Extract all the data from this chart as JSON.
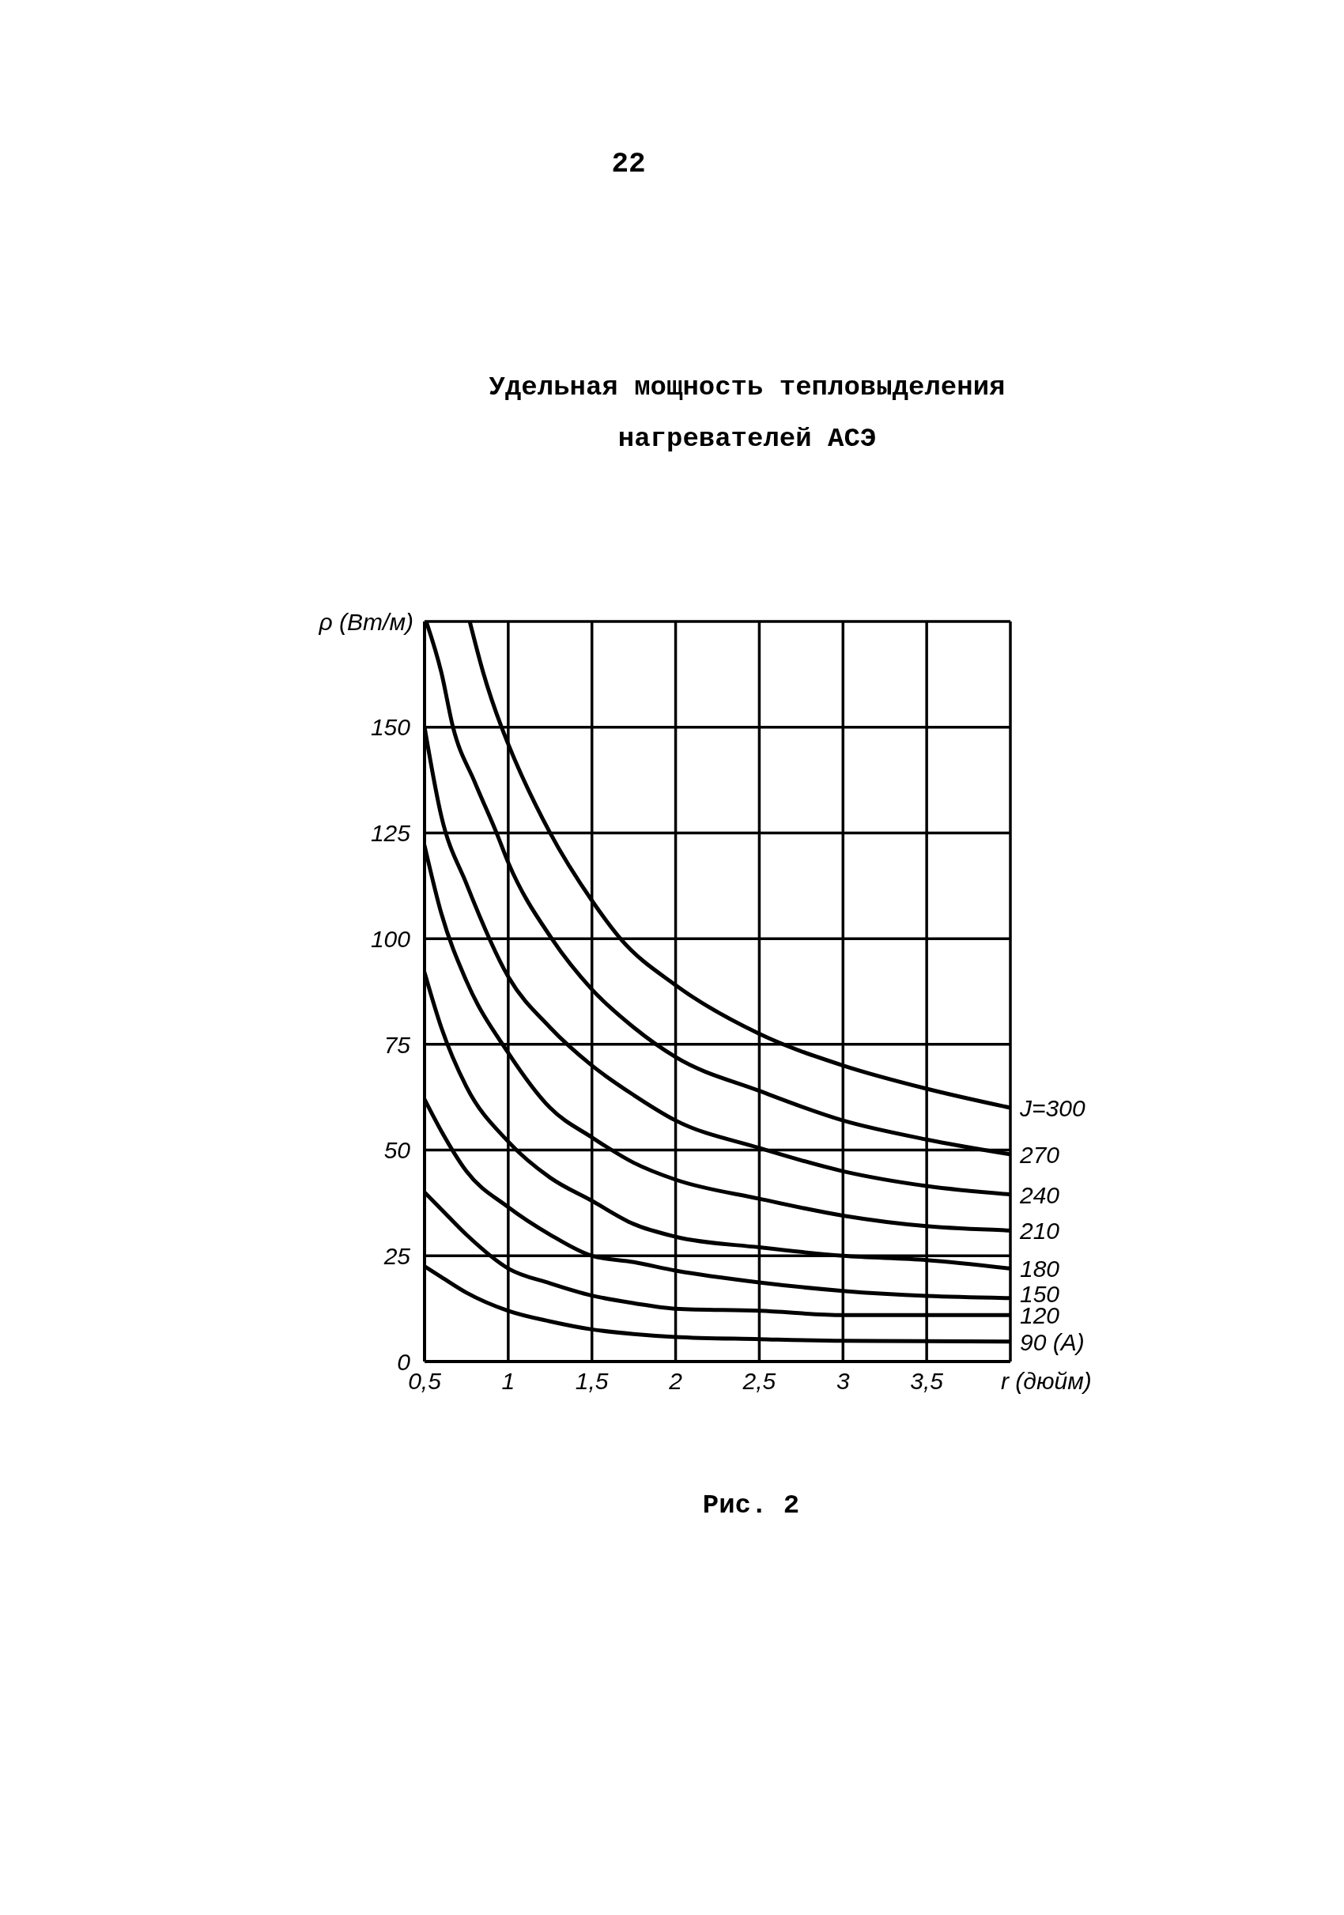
{
  "chart_data": {
    "type": "line",
    "title": "Удельная мощность тепловыделения нагревателей АСЭ",
    "xlabel": "r (дюйм)",
    "ylabel": "ρ (Вт/м)",
    "annotations": [
      "22",
      "Рис. 2"
    ],
    "xlim": [
      0.5,
      4
    ],
    "xticks": [
      {
        "value": 0.5,
        "label": "0,5"
      },
      1,
      {
        "value": 1.5,
        "label": "1,5"
      },
      2,
      {
        "value": 2.5,
        "label": "2,5"
      },
      3,
      {
        "value": 3.5,
        "label": "3,5"
      },
      {
        "value": 4,
        "label": null
      }
    ],
    "ylim": [
      0,
      175
    ],
    "yticks": [
      0,
      25,
      50,
      75,
      100,
      125,
      150,
      {
        "value": 175,
        "label": null
      }
    ],
    "grid": true,
    "x": [
      0.5,
      0.6,
      0.75,
      1,
      1.25,
      1.5,
      1.75,
      2,
      2.5,
      3,
      3.5,
      4
    ],
    "series": [
      {
        "name": "J=300",
        "color": "#000000",
        "x": [
          0.77,
          0.85,
          0.96,
          1,
          1.25,
          1.5,
          1.67,
          2,
          2.5,
          3,
          3.5,
          4
        ],
        "values": [
          175,
          163,
          150,
          146,
          125,
          109,
          100,
          89,
          77.5,
          70,
          64.5,
          60
        ]
      },
      {
        "name": "270",
        "color": "#000000",
        "x": [
          0.51,
          0.6,
          0.67,
          0.8,
          0.93,
          1,
          1.26,
          1.5,
          1.75,
          2,
          2.5,
          3,
          3.5,
          4
        ],
        "values": [
          175,
          163,
          150,
          137,
          125,
          118,
          100,
          88,
          79,
          72,
          64,
          57,
          52.5,
          49
        ]
      },
      {
        "name": "240",
        "color": "#000000",
        "values": [
          150,
          129,
          113,
          91,
          79,
          70,
          63,
          57,
          50.5,
          45,
          41.5,
          39.5
        ]
      },
      {
        "name": "210",
        "color": "#000000",
        "values": [
          122,
          106,
          90,
          73,
          60,
          53,
          47,
          43,
          38.5,
          34.5,
          32,
          31
        ]
      },
      {
        "name": "180",
        "color": "#000000",
        "values": [
          92,
          79,
          65,
          52,
          43.5,
          38,
          32.5,
          29.5,
          27,
          25,
          24,
          22
        ]
      },
      {
        "name": "150",
        "color": "#000000",
        "values": [
          62,
          54.5,
          45,
          36.5,
          30,
          25,
          23.5,
          21.5,
          18.7,
          16.7,
          15.5,
          15
        ]
      },
      {
        "name": "120",
        "color": "#000000",
        "values": [
          40,
          36,
          30,
          22,
          18.5,
          15.6,
          13.8,
          12.5,
          12,
          11,
          11,
          11
        ]
      },
      {
        "name": "90 (А)",
        "color": "#000000",
        "values": [
          22.5,
          20,
          16.3,
          12,
          9.5,
          7.6,
          6.5,
          5.8,
          5.3,
          4.9,
          4.8,
          4.7
        ]
      }
    ]
  }
}
